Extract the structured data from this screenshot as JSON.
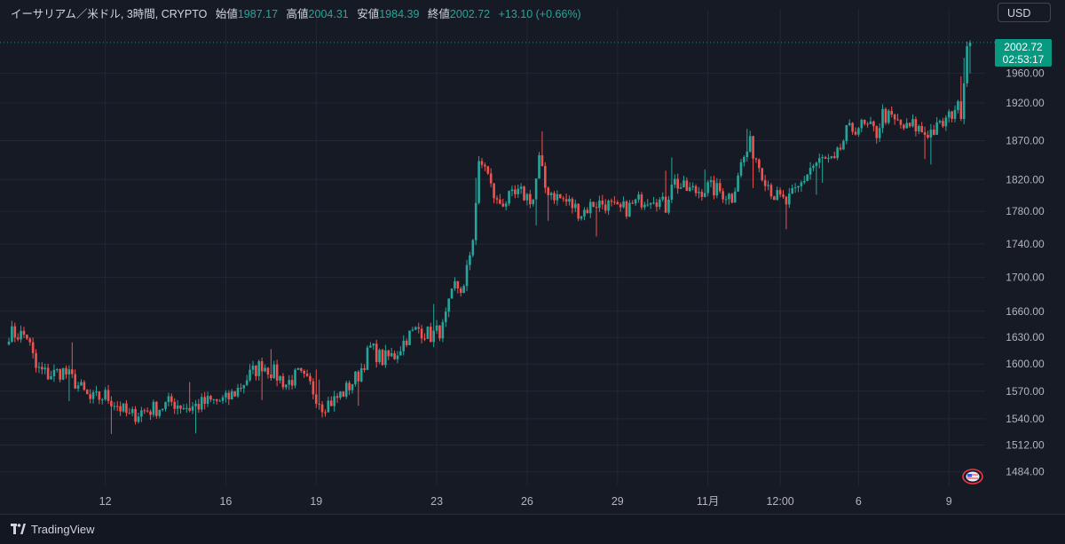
{
  "legend": {
    "symbol": "イーサリアム／米ドル, 3時間, CRYPTO",
    "open_label": "始値",
    "open": "1987.17",
    "high_label": "高値",
    "high": "2004.31",
    "low_label": "安値",
    "low": "1984.39",
    "close_label": "終値",
    "close": "2002.72",
    "change": "+13.10 (+0.66%)"
  },
  "currency_button": "USD",
  "brand": "TradingView",
  "colors": {
    "up": "#26a69a",
    "down": "#ef5350",
    "background": "#161a25",
    "grid": "#232734",
    "price_tag": "#089981"
  },
  "chart_data": {
    "type": "candlestick",
    "y_scale": "log",
    "ylim": [
      1470,
      2025
    ],
    "y_ticks": [
      1484,
      1512,
      1540,
      1570,
      1600,
      1630,
      1660,
      1700,
      1740,
      1780,
      1820,
      1870,
      1920,
      1960
    ],
    "y_tick_labels": [
      "1484.00",
      "1512.00",
      "1540.00",
      "1570.00",
      "1600.00",
      "1630.00",
      "1660.00",
      "1700.00",
      "1740.00",
      "1780.00",
      "1820.00",
      "1870.00",
      "1920.00",
      "1960.00"
    ],
    "x_labels": [
      "12",
      "16",
      "19",
      "23",
      "26",
      "29",
      "11月",
      "12:00",
      "6",
      "9"
    ],
    "x_label_bar_index": [
      32,
      72,
      102,
      142,
      172,
      202,
      232,
      256,
      282,
      312
    ],
    "last_price": "2002.72",
    "countdown": "02:53:17",
    "anchors": [
      [
        0,
        1635
      ],
      [
        6,
        1632
      ],
      [
        9,
        1595
      ],
      [
        13,
        1588
      ],
      [
        18,
        1592
      ],
      [
        22,
        1580
      ],
      [
        27,
        1560
      ],
      [
        32,
        1565
      ],
      [
        36,
        1555
      ],
      [
        40,
        1542
      ],
      [
        44,
        1548
      ],
      [
        50,
        1552
      ],
      [
        54,
        1558
      ],
      [
        60,
        1552
      ],
      [
        66,
        1558
      ],
      [
        72,
        1560
      ],
      [
        76,
        1572
      ],
      [
        80,
        1588
      ],
      [
        84,
        1600
      ],
      [
        88,
        1590
      ],
      [
        92,
        1578
      ],
      [
        96,
        1588
      ],
      [
        100,
        1576
      ],
      [
        104,
        1555
      ],
      [
        108,
        1560
      ],
      [
        112,
        1572
      ],
      [
        116,
        1588
      ],
      [
        120,
        1618
      ],
      [
        124,
        1605
      ],
      [
        128,
        1610
      ],
      [
        132,
        1630
      ],
      [
        136,
        1640
      ],
      [
        140,
        1632
      ],
      [
        144,
        1640
      ],
      [
        148,
        1690
      ],
      [
        151,
        1685
      ],
      [
        154,
        1750
      ],
      [
        156,
        1835
      ],
      [
        158,
        1840
      ],
      [
        160,
        1810
      ],
      [
        162,
        1790
      ],
      [
        166,
        1795
      ],
      [
        170,
        1802
      ],
      [
        174,
        1795
      ],
      [
        176,
        1845
      ],
      [
        178,
        1810
      ],
      [
        182,
        1798
      ],
      [
        186,
        1790
      ],
      [
        190,
        1778
      ],
      [
        194,
        1790
      ],
      [
        198,
        1790
      ],
      [
        202,
        1780
      ],
      [
        206,
        1785
      ],
      [
        210,
        1795
      ],
      [
        214,
        1800
      ],
      [
        218,
        1785
      ],
      [
        220,
        1820
      ],
      [
        224,
        1808
      ],
      [
        228,
        1805
      ],
      [
        232,
        1810
      ],
      [
        236,
        1805
      ],
      [
        240,
        1798
      ],
      [
        242,
        1830
      ],
      [
        246,
        1865
      ],
      [
        250,
        1830
      ],
      [
        254,
        1800
      ],
      [
        258,
        1790
      ],
      [
        262,
        1808
      ],
      [
        266,
        1835
      ],
      [
        270,
        1845
      ],
      [
        274,
        1840
      ],
      [
        278,
        1880
      ],
      [
        282,
        1890
      ],
      [
        286,
        1885
      ],
      [
        288,
        1880
      ],
      [
        290,
        1905
      ],
      [
        294,
        1895
      ],
      [
        298,
        1885
      ],
      [
        300,
        1890
      ],
      [
        304,
        1880
      ],
      [
        308,
        1885
      ],
      [
        312,
        1900
      ],
      [
        314,
        1915
      ],
      [
        316,
        1910
      ],
      [
        317,
        1955
      ],
      [
        318,
        2000
      ]
    ]
  }
}
